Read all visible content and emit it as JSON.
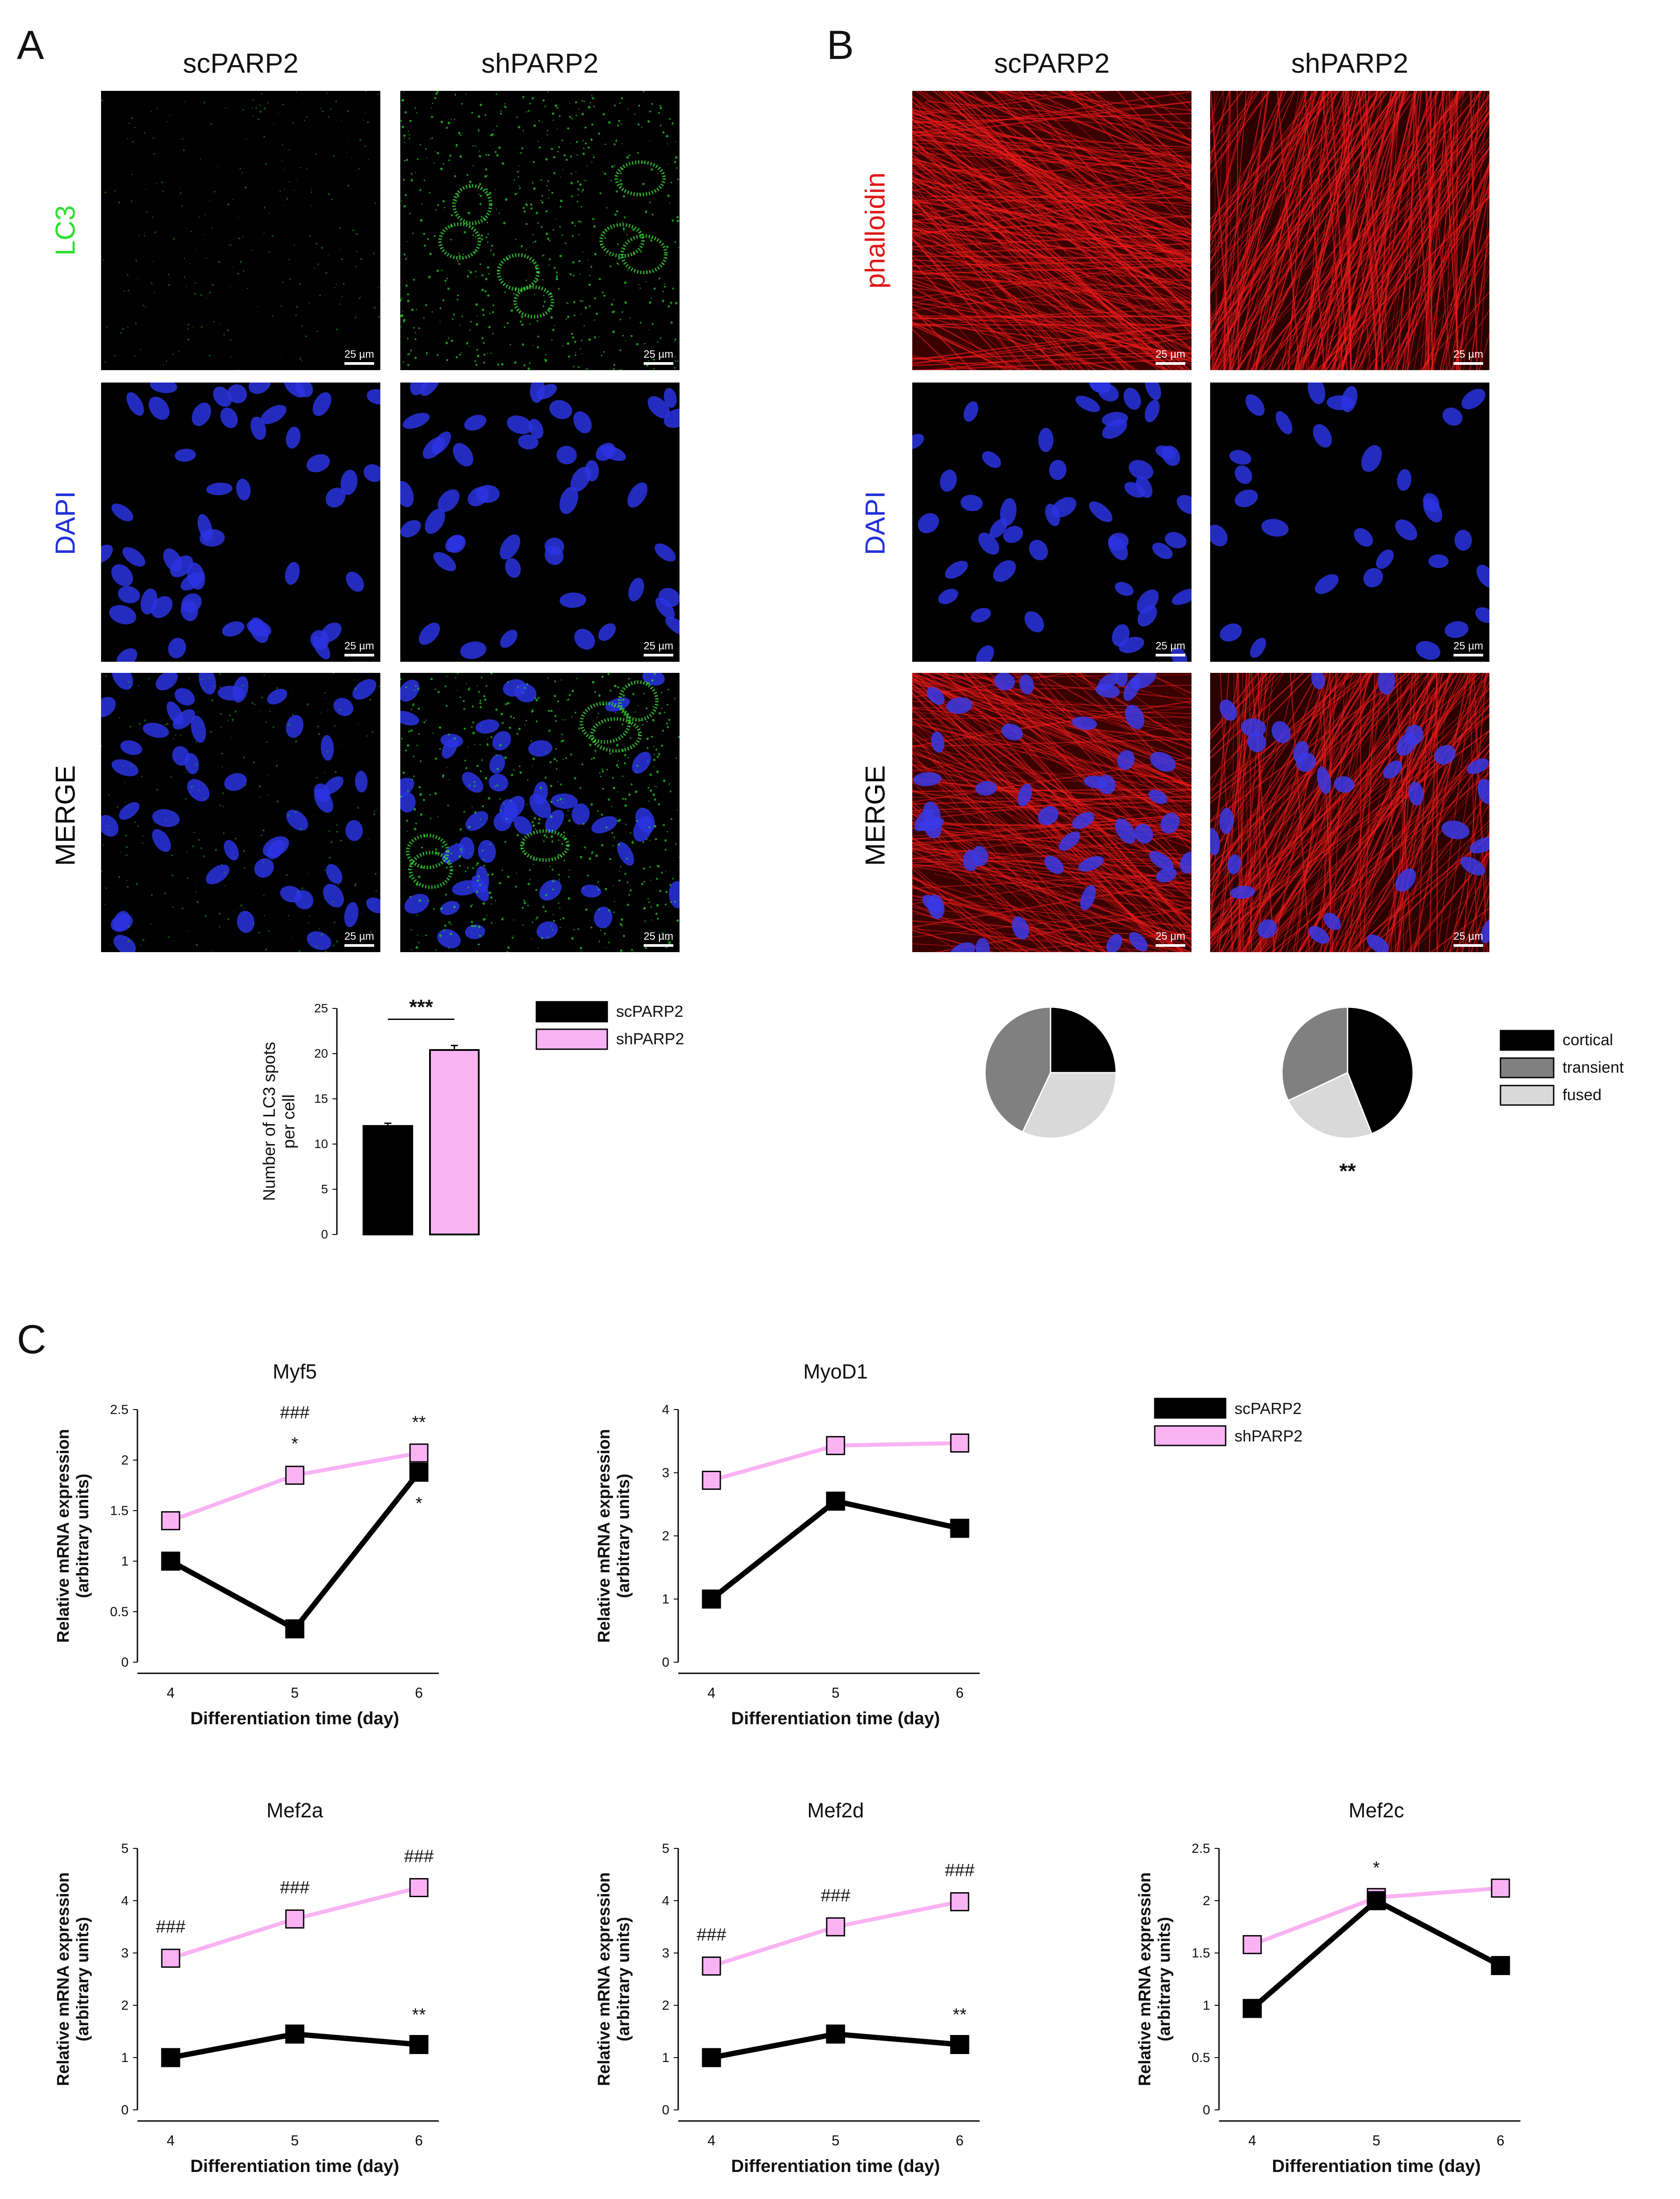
{
  "figure": {
    "panels": {
      "A": {
        "letter": "A",
        "columns": [
          "scPARP2",
          "shPARP2"
        ],
        "rows": [
          {
            "label": "LC3",
            "color": "#2de02d"
          },
          {
            "label": "DAPI",
            "color": "#2230d8"
          },
          {
            "label": "MERGE",
            "color": "#000000"
          }
        ],
        "scale_label": "25 µm"
      },
      "B": {
        "letter": "B",
        "columns": [
          "scPARP2",
          "shPARP2"
        ],
        "rows": [
          {
            "label": "phalloidin",
            "color": "#e01818"
          },
          {
            "label": "DAPI",
            "color": "#2230d8"
          },
          {
            "label": "MERGE",
            "color": "#000000"
          }
        ],
        "scale_label": "25 µm"
      },
      "C": {
        "letter": "C"
      }
    }
  },
  "chart_data": [
    {
      "id": "lc3-bar",
      "type": "bar",
      "categories": [
        "scPARP2",
        "shPARP2"
      ],
      "values": [
        12.0,
        20.4
      ],
      "errors": [
        0.3,
        0.5
      ],
      "colors": [
        "#000000",
        "#f9b3f3"
      ],
      "ylabel": "Number of LC3 spots\nper cell",
      "ylim": [
        0,
        25
      ],
      "yticks": [
        0,
        5,
        10,
        15,
        20,
        25
      ],
      "significance": "***",
      "legend": [
        {
          "name": "scPARP2",
          "color": "#000000"
        },
        {
          "name": "shPARP2",
          "color": "#f9b3f3"
        }
      ]
    },
    {
      "id": "pie-scparp2",
      "type": "pie",
      "slices": [
        {
          "label": "cortical",
          "value": 25,
          "color": "#000000"
        },
        {
          "label": "fused",
          "value": 32,
          "color": "#d9d9d9"
        },
        {
          "label": "transient",
          "value": 43,
          "color": "#808080"
        }
      ],
      "annotation": ""
    },
    {
      "id": "pie-shparp2",
      "type": "pie",
      "slices": [
        {
          "label": "cortical",
          "value": 44,
          "color": "#000000"
        },
        {
          "label": "fused",
          "value": 24,
          "color": "#d9d9d9"
        },
        {
          "label": "transient",
          "value": 32,
          "color": "#808080"
        }
      ],
      "annotation": "**",
      "legend": [
        {
          "name": "cortical",
          "color": "#000000"
        },
        {
          "name": "transient",
          "color": "#808080"
        },
        {
          "name": "fused",
          "color": "#d9d9d9"
        }
      ]
    },
    {
      "id": "myf5",
      "type": "line",
      "title": "Myf5",
      "x": [
        4,
        5,
        6
      ],
      "xlabel": "Differentiation time (day)",
      "ylabel": "Relative mRNA expression\n(arbitrary units)",
      "ylim": [
        0,
        2.5
      ],
      "yticks": [
        0,
        0.5,
        1,
        1.5,
        2,
        2.5
      ],
      "series": [
        {
          "name": "shPARP2",
          "values": [
            1.4,
            1.85,
            2.07
          ],
          "errors": [
            0.06,
            0.08,
            0.07
          ],
          "color": "#f9b3f3"
        },
        {
          "name": "scPARP2",
          "values": [
            1.0,
            0.33,
            1.88
          ],
          "errors": [
            0.02,
            0.07,
            0.06
          ],
          "color": "#000000"
        }
      ],
      "annotations": [
        {
          "x": 5,
          "text": "###",
          "pos": "above"
        },
        {
          "x": 5,
          "text": "*",
          "pos": "above2"
        },
        {
          "x": 6,
          "text": "**",
          "pos": "above"
        },
        {
          "x": 6,
          "text": "*",
          "pos": "below"
        }
      ],
      "legend": [
        {
          "name": "scPARP2",
          "color": "#000000"
        },
        {
          "name": "shPARP2",
          "color": "#f9b3f3"
        }
      ]
    },
    {
      "id": "myod1",
      "type": "line",
      "title": "MyoD1",
      "x": [
        4,
        5,
        6
      ],
      "xlabel": "Differentiation time (day)",
      "ylabel": "Relative mRNA expression\n(arbitrary units)",
      "ylim": [
        0,
        4
      ],
      "yticks": [
        0,
        1,
        2,
        3,
        4
      ],
      "series": [
        {
          "name": "shPARP2",
          "values": [
            2.88,
            3.43,
            3.47
          ],
          "errors": [
            0.1,
            0.12,
            0.12
          ],
          "color": "#f9b3f3"
        },
        {
          "name": "scPARP2",
          "values": [
            1.0,
            2.55,
            2.12
          ],
          "errors": [
            0.03,
            0.1,
            0.1
          ],
          "color": "#000000"
        }
      ],
      "annotations": []
    },
    {
      "id": "mef2a",
      "type": "line",
      "title": "Mef2a",
      "x": [
        4,
        5,
        6
      ],
      "xlabel": "Differentiation time (day)",
      "ylabel": "Relative mRNA expression\n(arbitrary units)",
      "ylim": [
        0,
        5
      ],
      "yticks": [
        0,
        1,
        2,
        3,
        4,
        5
      ],
      "series": [
        {
          "name": "shPARP2",
          "values": [
            2.9,
            3.65,
            4.25
          ],
          "errors": [
            0.15,
            0.15,
            0.15
          ],
          "color": "#f9b3f3"
        },
        {
          "name": "scPARP2",
          "values": [
            1.0,
            1.45,
            1.25
          ],
          "errors": [
            0.03,
            0.12,
            0.12
          ],
          "color": "#000000"
        }
      ],
      "annotations": [
        {
          "x": 4,
          "text": "###",
          "pos": "above"
        },
        {
          "x": 5,
          "text": "###",
          "pos": "above"
        },
        {
          "x": 6,
          "text": "###",
          "pos": "above"
        },
        {
          "x": 6,
          "text": "**",
          "pos": "lowabove"
        }
      ]
    },
    {
      "id": "mef2d",
      "type": "line",
      "title": "Mef2d",
      "x": [
        4,
        5,
        6
      ],
      "xlabel": "Differentiation time (day)",
      "ylabel": "Relative mRNA expression\n(arbitrary units)",
      "ylim": [
        0,
        5
      ],
      "yticks": [
        0,
        1,
        2,
        3,
        4,
        5
      ],
      "series": [
        {
          "name": "shPARP2",
          "values": [
            2.75,
            3.5,
            3.98
          ],
          "errors": [
            0.15,
            0.15,
            0.15
          ],
          "color": "#f9b3f3"
        },
        {
          "name": "scPARP2",
          "values": [
            1.0,
            1.45,
            1.25
          ],
          "errors": [
            0.03,
            0.12,
            0.12
          ],
          "color": "#000000"
        }
      ],
      "annotations": [
        {
          "x": 4,
          "text": "###",
          "pos": "above"
        },
        {
          "x": 5,
          "text": "###",
          "pos": "above"
        },
        {
          "x": 6,
          "text": "###",
          "pos": "above"
        },
        {
          "x": 6,
          "text": "**",
          "pos": "lowabove"
        }
      ]
    },
    {
      "id": "mef2c",
      "type": "line",
      "title": "Mef2c",
      "x": [
        4,
        5,
        6
      ],
      "xlabel": "Differentiation time (day)",
      "ylabel": "Relative mRNA expression\n(arbitrary units)",
      "ylim": [
        0,
        2.5
      ],
      "yticks": [
        0,
        0.5,
        1,
        1.5,
        2,
        2.5
      ],
      "series": [
        {
          "name": "shPARP2",
          "values": [
            1.58,
            2.03,
            2.12
          ],
          "errors": [
            0.08,
            0.06,
            0.07
          ],
          "color": "#f9b3f3"
        },
        {
          "name": "scPARP2",
          "values": [
            0.97,
            2.0,
            1.38
          ],
          "errors": [
            0.02,
            0.06,
            0.08
          ],
          "color": "#000000"
        }
      ],
      "annotations": [
        {
          "x": 5,
          "text": "*",
          "pos": "above"
        }
      ]
    }
  ]
}
